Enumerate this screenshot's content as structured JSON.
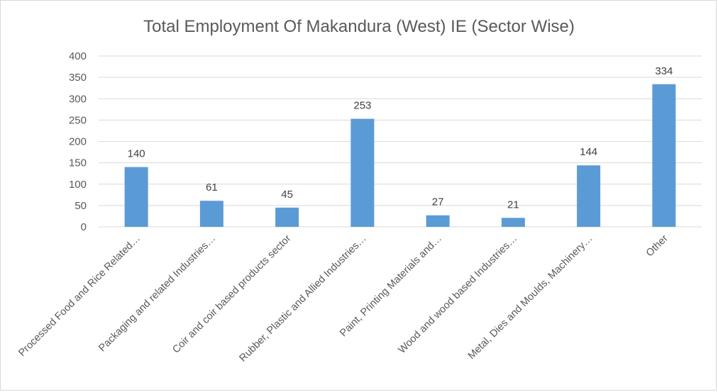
{
  "chart_data": {
    "type": "bar",
    "title": "Total Employment Of Makandura (West) IE (Sector Wise)",
    "xlabel": "",
    "ylabel": "",
    "ylim": [
      0,
      400
    ],
    "yticks": [
      0,
      50,
      100,
      150,
      200,
      250,
      300,
      350,
      400
    ],
    "grid": true,
    "legend": "none",
    "bar_color": "#5b9bd5",
    "categories": [
      "Processed Food and Rice Related…",
      "Packaging and related Industries…",
      "Coir and coir based products sector",
      "Rubber, Plastic and Allied Industries…",
      "Paint, Printing Materials and…",
      "Wood and wood based Industries…",
      "Metal, Dies and Moulds, Machinery…",
      "Other"
    ],
    "values": [
      140,
      61,
      45,
      253,
      27,
      21,
      144,
      334
    ]
  }
}
